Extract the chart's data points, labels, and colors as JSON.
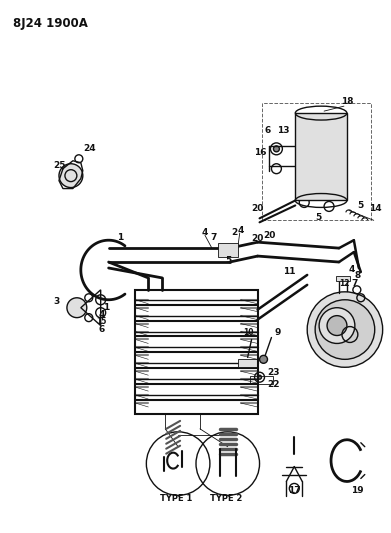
{
  "title": "8J24 1900A",
  "bg_color": "#ffffff",
  "figsize": [
    3.91,
    5.33
  ],
  "dpi": 100,
  "line_color": "#111111",
  "gray_fill": "#cccccc",
  "light_gray": "#e0e0e0",
  "dark_gray": "#888888"
}
